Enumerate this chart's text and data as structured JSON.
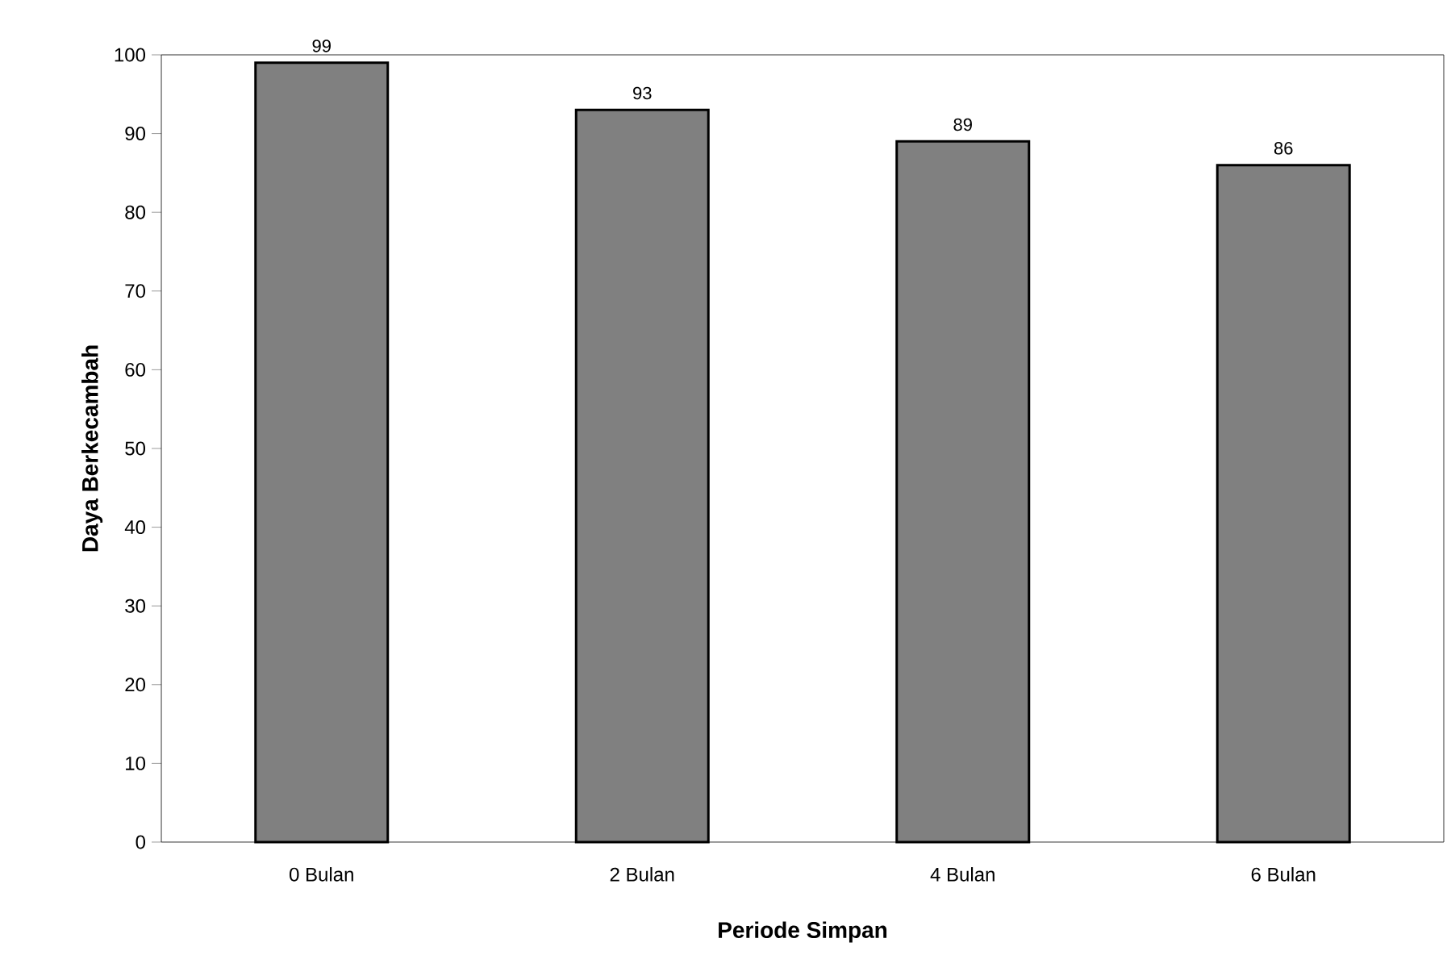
{
  "chart_data": {
    "type": "bar",
    "xlabel": "Periode Simpan",
    "ylabel": "Daya Berkecambah",
    "categories": [
      "0 Bulan",
      "2 Bulan",
      "4 Bulan",
      "6 Bulan"
    ],
    "values": [
      99,
      93,
      89,
      86
    ],
    "color": "#808080",
    "ylim": [
      0,
      100
    ],
    "yticks": [
      0,
      10,
      20,
      30,
      40,
      50,
      60,
      70,
      80,
      90,
      100
    ],
    "data_labels": true
  }
}
